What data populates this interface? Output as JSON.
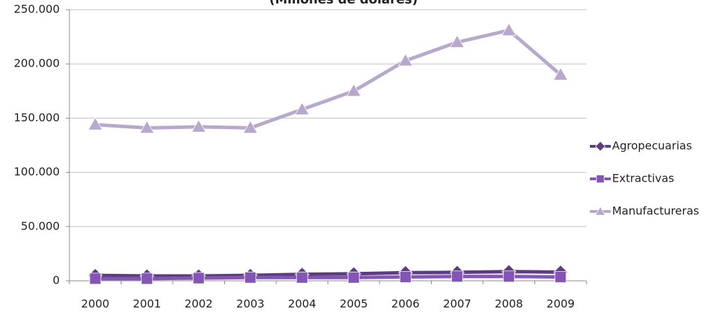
{
  "chart_data": {
    "type": "line",
    "title": "(Millones de dólares)",
    "categories": [
      "2000",
      "2001",
      "2002",
      "2003",
      "2004",
      "2005",
      "2006",
      "2007",
      "2008",
      "2009"
    ],
    "series": [
      {
        "name": "Agropecuarias",
        "color": "#5e3c82",
        "marker": "diamond",
        "values": [
          5000,
          4500,
          4500,
          5000,
          6000,
          6500,
          7500,
          7800,
          8500,
          8000
        ]
      },
      {
        "name": "Extractivas",
        "color": "#8356b5",
        "marker": "square",
        "values": [
          2000,
          2000,
          2500,
          3000,
          3000,
          3000,
          3500,
          4000,
          4000,
          3500
        ]
      },
      {
        "name": "Manufactureras",
        "color": "#b7a8cc",
        "marker": "triangle",
        "values": [
          144000,
          141000,
          142000,
          141000,
          158000,
          175000,
          203000,
          220000,
          231000,
          190000
        ]
      }
    ],
    "ylim": [
      0,
      250000
    ],
    "yticks": [
      0,
      {
        "value": 50000,
        "label": "50.000"
      },
      {
        "value": 100000,
        "label": "100.000"
      },
      {
        "value": 150000,
        "label": "150.000"
      },
      {
        "value": 200000,
        "label": "200.000"
      },
      {
        "value": 250000,
        "label": "250.000"
      }
    ],
    "grid": true,
    "legend": "right"
  }
}
